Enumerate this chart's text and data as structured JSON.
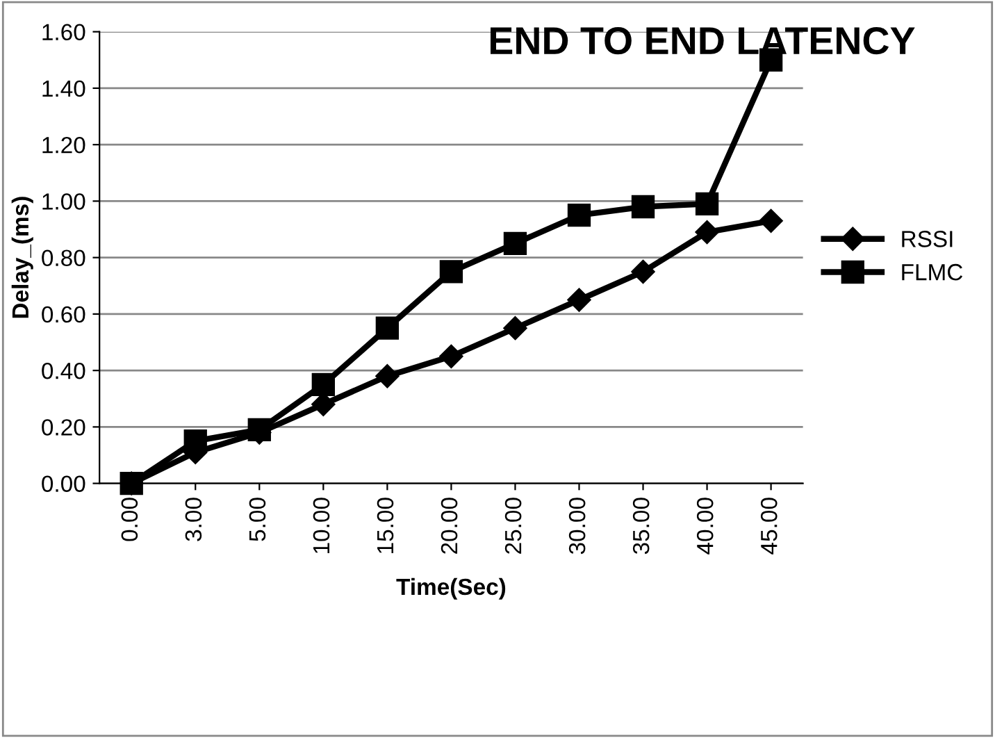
{
  "chart_data": {
    "type": "line",
    "title": "END TO END LATENCY",
    "xlabel": "Time(Sec)",
    "ylabel": "Delay_(ms)",
    "categories": [
      "0.00",
      "3.00",
      "5.00",
      "10.00",
      "15.00",
      "20.00",
      "25.00",
      "30.00",
      "35.00",
      "40.00",
      "45.00"
    ],
    "series": [
      {
        "name": "RSSI",
        "color": "#000000",
        "marker": "diamond",
        "values": [
          0.0,
          0.11,
          0.18,
          0.28,
          0.38,
          0.45,
          0.55,
          0.65,
          0.75,
          0.89,
          0.93
        ]
      },
      {
        "name": "FLMC",
        "color": "#000000",
        "marker": "square",
        "values": [
          0.0,
          0.15,
          0.19,
          0.35,
          0.55,
          0.75,
          0.85,
          0.95,
          0.98,
          0.99,
          1.5
        ]
      }
    ],
    "ylim": [
      0,
      1.6
    ],
    "yticks": [
      {
        "value": 0,
        "label": "0.00"
      },
      {
        "value": 0.2,
        "label": "0.20"
      },
      {
        "value": 0.4,
        "label": "0.40"
      },
      {
        "value": 0.6,
        "label": "0.60"
      },
      {
        "value": 0.8,
        "label": "0.80"
      },
      {
        "value": 1.0,
        "label": "1.00"
      },
      {
        "value": 1.2,
        "label": "1.20"
      },
      {
        "value": 1.4,
        "label": "1.40"
      },
      {
        "value": 1.6,
        "label": "1.60"
      }
    ],
    "grid": "y",
    "legend": "right",
    "line_style": "solid"
  }
}
